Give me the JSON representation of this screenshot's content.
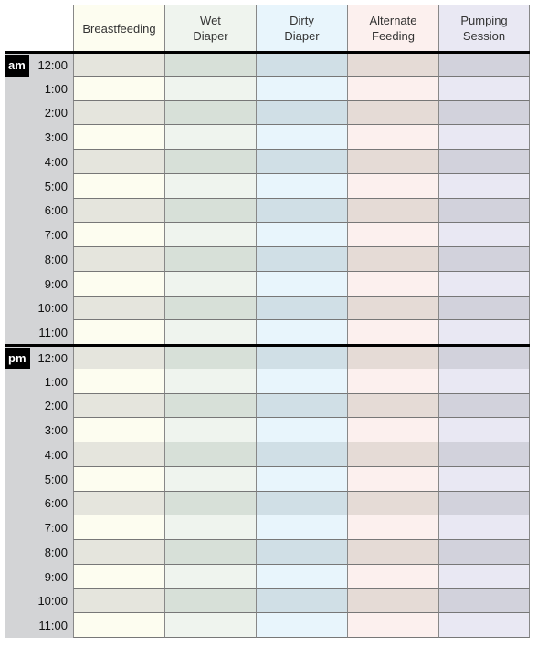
{
  "columns": [
    {
      "label": "Breastfeeding",
      "light": "#fdfdf0",
      "dark": "#e5e5dd"
    },
    {
      "label": "Wet\nDiaper",
      "light": "#eff4ee",
      "dark": "#d7e0d8"
    },
    {
      "label": "Dirty\nDiaper",
      "light": "#e8f5fc",
      "dark": "#d0dfe6"
    },
    {
      "label": "Alternate\nFeeding",
      "light": "#fcf0ee",
      "dark": "#e5dbd6"
    },
    {
      "label": "Pumping\nSession",
      "light": "#e9e8f3",
      "dark": "#d2d2dc"
    }
  ],
  "periods": [
    {
      "label": "am",
      "hours": [
        "12:00",
        "1:00",
        "2:00",
        "3:00",
        "4:00",
        "5:00",
        "6:00",
        "7:00",
        "8:00",
        "9:00",
        "10:00",
        "11:00"
      ]
    },
    {
      "label": "pm",
      "hours": [
        "12:00",
        "1:00",
        "2:00",
        "3:00",
        "4:00",
        "5:00",
        "6:00",
        "7:00",
        "8:00",
        "9:00",
        "10:00",
        "11:00"
      ]
    }
  ]
}
